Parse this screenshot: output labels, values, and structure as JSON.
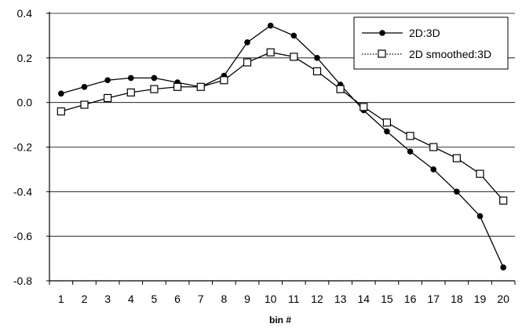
{
  "chart_data": {
    "type": "line",
    "xlabel": "bin #",
    "ylabel": "",
    "title": "",
    "x": [
      1,
      2,
      3,
      4,
      5,
      6,
      7,
      8,
      9,
      10,
      11,
      12,
      13,
      14,
      15,
      16,
      17,
      18,
      19,
      20
    ],
    "ylim": [
      -0.8,
      0.4
    ],
    "yticks": [
      "0.4",
      "0.2",
      "0.0",
      "-0.2",
      "-0.4",
      "-0.6",
      "-0.8"
    ],
    "grid": "horizontal",
    "legend_position": "top-right",
    "series": [
      {
        "name": "2D:3D",
        "marker": "filled-circle",
        "values": [
          0.04,
          0.07,
          0.1,
          0.11,
          0.11,
          0.09,
          0.07,
          0.12,
          0.27,
          0.345,
          0.3,
          0.2,
          0.08,
          -0.035,
          -0.13,
          -0.22,
          -0.3,
          -0.4,
          -0.51,
          -0.74
        ]
      },
      {
        "name": "2D smoothed:3D",
        "marker": "open-square",
        "values": [
          -0.04,
          -0.01,
          0.02,
          0.045,
          0.06,
          0.07,
          0.07,
          0.1,
          0.18,
          0.225,
          0.205,
          0.14,
          0.06,
          -0.02,
          -0.09,
          -0.15,
          -0.2,
          -0.25,
          -0.32,
          -0.44
        ]
      }
    ]
  }
}
